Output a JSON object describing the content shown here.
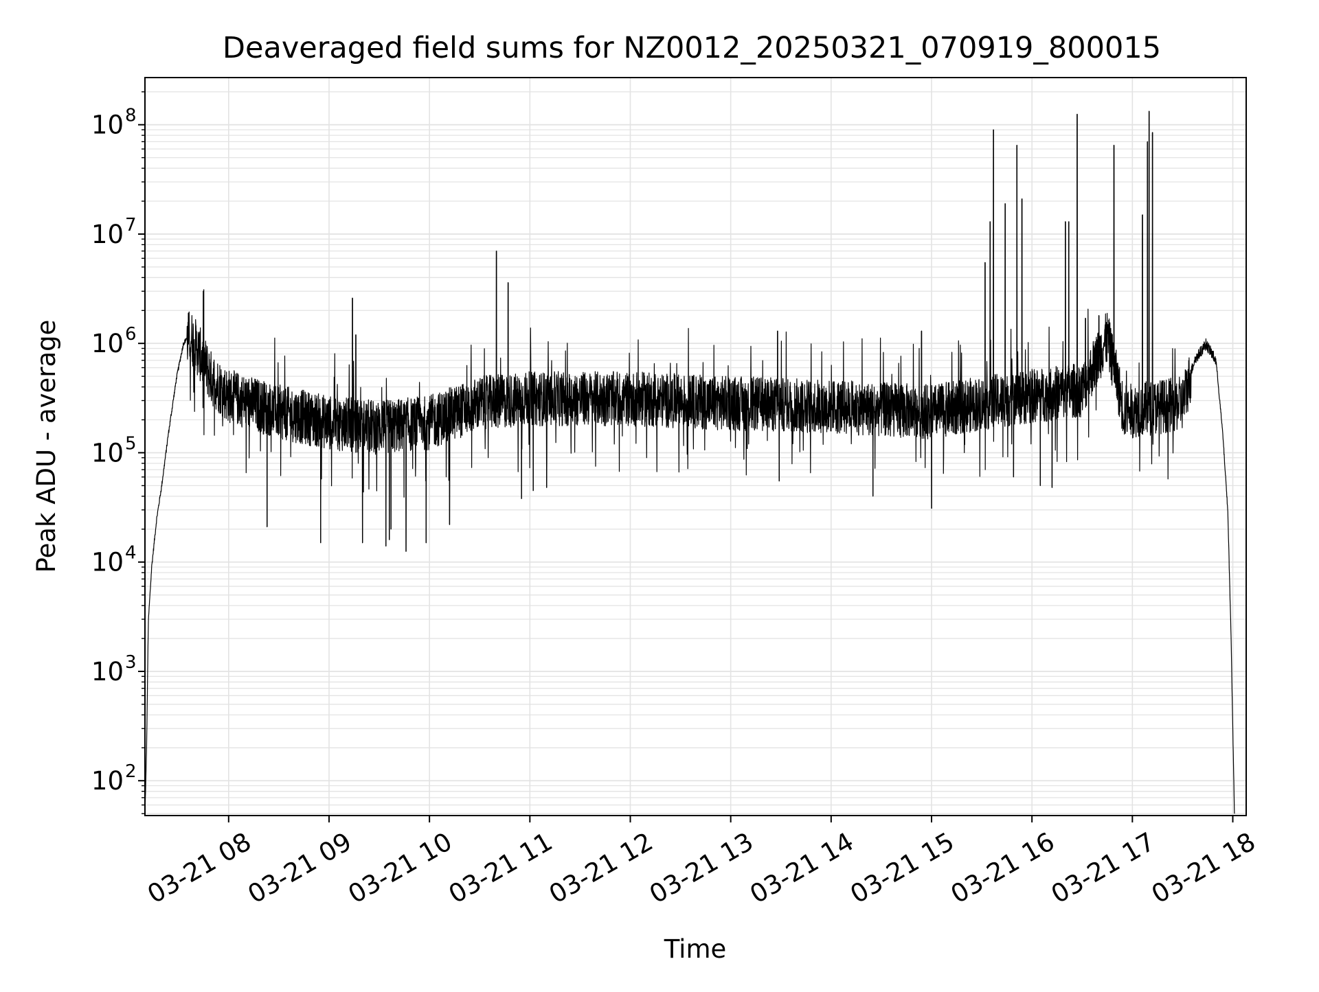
{
  "chart_data": {
    "type": "line",
    "title": "Deaveraged field sums for NZ0012_20250321_070919_800015",
    "xlabel": "Time",
    "ylabel": "Peak ADU - average",
    "yscale": "log",
    "grid": true,
    "legend": "none",
    "xlim": [
      "2025-03-21 07:10",
      "2025-03-21 18:08"
    ],
    "ylim": [
      48,
      270000000
    ],
    "x_ticks": [
      {
        "value": "2025-03-21 08:00",
        "label": "03-21 08"
      },
      {
        "value": "2025-03-21 09:00",
        "label": "03-21 09"
      },
      {
        "value": "2025-03-21 10:00",
        "label": "03-21 10"
      },
      {
        "value": "2025-03-21 11:00",
        "label": "03-21 11"
      },
      {
        "value": "2025-03-21 12:00",
        "label": "03-21 12"
      },
      {
        "value": "2025-03-21 13:00",
        "label": "03-21 13"
      },
      {
        "value": "2025-03-21 14:00",
        "label": "03-21 14"
      },
      {
        "value": "2025-03-21 15:00",
        "label": "03-21 15"
      },
      {
        "value": "2025-03-21 16:00",
        "label": "03-21 16"
      },
      {
        "value": "2025-03-21 17:00",
        "label": "03-21 17"
      },
      {
        "value": "2025-03-21 18:00",
        "label": "03-21 18"
      }
    ],
    "y_ticks": [
      {
        "value": 100,
        "base": "10",
        "exponent": "2"
      },
      {
        "value": 1000,
        "base": "10",
        "exponent": "3"
      },
      {
        "value": 10000,
        "base": "10",
        "exponent": "4"
      },
      {
        "value": 100000,
        "base": "10",
        "exponent": "5"
      },
      {
        "value": 1000000,
        "base": "10",
        "exponent": "6"
      },
      {
        "value": 10000000,
        "base": "10",
        "exponent": "7"
      },
      {
        "value": 100000000,
        "base": "10",
        "exponent": "8"
      }
    ],
    "series": [
      {
        "color": "#000000",
        "baseline_points": [
          {
            "x": "2025-03-21 07:10",
            "y": 50
          },
          {
            "x": "2025-03-21 07:11",
            "y": 200
          },
          {
            "x": "2025-03-21 07:12",
            "y": 2800
          },
          {
            "x": "2025-03-21 07:14",
            "y": 9000
          },
          {
            "x": "2025-03-21 07:17",
            "y": 25000
          },
          {
            "x": "2025-03-21 07:20",
            "y": 50000
          },
          {
            "x": "2025-03-21 07:24",
            "y": 150000
          },
          {
            "x": "2025-03-21 07:29",
            "y": 500000
          },
          {
            "x": "2025-03-21 07:33",
            "y": 1000000
          },
          {
            "x": "2025-03-21 07:37",
            "y": 1250000
          },
          {
            "x": "2025-03-21 07:42",
            "y": 900000
          },
          {
            "x": "2025-03-21 07:50",
            "y": 500000
          },
          {
            "x": "2025-03-21 08:00",
            "y": 350000
          },
          {
            "x": "2025-03-21 08:30",
            "y": 250000
          },
          {
            "x": "2025-03-21 09:00",
            "y": 200000
          },
          {
            "x": "2025-03-21 09:30",
            "y": 180000
          },
          {
            "x": "2025-03-21 10:00",
            "y": 200000
          },
          {
            "x": "2025-03-21 10:30",
            "y": 300000
          },
          {
            "x": "2025-03-21 11:00",
            "y": 330000
          },
          {
            "x": "2025-03-21 12:00",
            "y": 330000
          },
          {
            "x": "2025-03-21 13:00",
            "y": 300000
          },
          {
            "x": "2025-03-21 14:00",
            "y": 280000
          },
          {
            "x": "2025-03-21 15:00",
            "y": 250000
          },
          {
            "x": "2025-03-21 15:30",
            "y": 300000
          },
          {
            "x": "2025-03-21 16:00",
            "y": 350000
          },
          {
            "x": "2025-03-21 16:30",
            "y": 400000
          },
          {
            "x": "2025-03-21 16:45",
            "y": 1200000
          },
          {
            "x": "2025-03-21 16:55",
            "y": 250000
          },
          {
            "x": "2025-03-21 17:30",
            "y": 300000
          },
          {
            "x": "2025-03-21 17:37",
            "y": 700000
          },
          {
            "x": "2025-03-21 17:44",
            "y": 1000000
          },
          {
            "x": "2025-03-21 17:50",
            "y": 700000
          },
          {
            "x": "2025-03-21 17:54",
            "y": 150000
          },
          {
            "x": "2025-03-21 17:57",
            "y": 30000
          },
          {
            "x": "2025-03-21 17:59",
            "y": 2000
          },
          {
            "x": "2025-03-21 18:00",
            "y": 300
          },
          {
            "x": "2025-03-21 18:01",
            "y": 48
          }
        ],
        "spikes": [
          {
            "x": "2025-03-21 09:14",
            "y": 2600000
          },
          {
            "x": "2025-03-21 09:16",
            "y": 1200000
          },
          {
            "x": "2025-03-21 10:40",
            "y": 7000000
          },
          {
            "x": "2025-03-21 10:47",
            "y": 3600000
          },
          {
            "x": "2025-03-21 13:28",
            "y": 1300000
          },
          {
            "x": "2025-03-21 14:54",
            "y": 1300000
          },
          {
            "x": "2025-03-21 15:32",
            "y": 5500000
          },
          {
            "x": "2025-03-21 15:35",
            "y": 13000000
          },
          {
            "x": "2025-03-21 15:37",
            "y": 90000000
          },
          {
            "x": "2025-03-21 15:44",
            "y": 19000000
          },
          {
            "x": "2025-03-21 15:51",
            "y": 65000000
          },
          {
            "x": "2025-03-21 15:54",
            "y": 21000000
          },
          {
            "x": "2025-03-21 16:20",
            "y": 13000000
          },
          {
            "x": "2025-03-21 16:22",
            "y": 13000000
          },
          {
            "x": "2025-03-21 16:27",
            "y": 125000000
          },
          {
            "x": "2025-03-21 16:32",
            "y": 1700000
          },
          {
            "x": "2025-03-21 16:40",
            "y": 1800000
          },
          {
            "x": "2025-03-21 16:49",
            "y": 65000000
          },
          {
            "x": "2025-03-21 17:06",
            "y": 15000000
          },
          {
            "x": "2025-03-21 17:09",
            "y": 70000000
          },
          {
            "x": "2025-03-21 17:10",
            "y": 133000000
          },
          {
            "x": "2025-03-21 17:12",
            "y": 85000000
          }
        ],
        "dips": [
          {
            "x": "2025-03-21 08:23",
            "y": 21000
          },
          {
            "x": "2025-03-21 08:55",
            "y": 15000
          },
          {
            "x": "2025-03-21 09:20",
            "y": 15000
          },
          {
            "x": "2025-03-21 09:34",
            "y": 14000
          },
          {
            "x": "2025-03-21 09:36",
            "y": 16000
          },
          {
            "x": "2025-03-21 09:37",
            "y": 20000
          },
          {
            "x": "2025-03-21 09:46",
            "y": 12500
          },
          {
            "x": "2025-03-21 09:58",
            "y": 15000
          },
          {
            "x": "2025-03-21 10:12",
            "y": 22000
          },
          {
            "x": "2025-03-21 10:55",
            "y": 38000
          },
          {
            "x": "2025-03-21 11:02",
            "y": 45000
          },
          {
            "x": "2025-03-21 11:10",
            "y": 48000
          },
          {
            "x": "2025-03-21 13:29",
            "y": 55000
          },
          {
            "x": "2025-03-21 14:25",
            "y": 40000
          },
          {
            "x": "2025-03-21 15:00",
            "y": 31000
          },
          {
            "x": "2025-03-21 15:49",
            "y": 60000
          },
          {
            "x": "2025-03-21 16:05",
            "y": 50000
          },
          {
            "x": "2025-03-21 16:12",
            "y": 48000
          }
        ]
      }
    ]
  }
}
